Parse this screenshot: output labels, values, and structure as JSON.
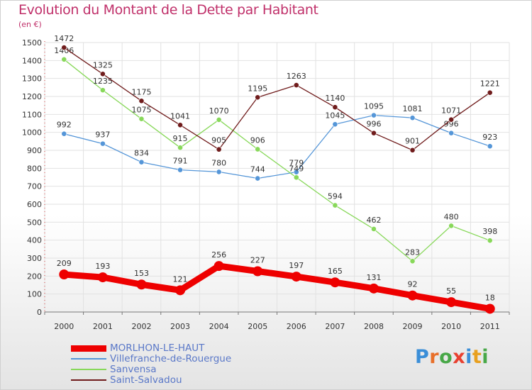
{
  "header": {
    "title": "Evolution du Montant de la Dette par Habitant",
    "unit": "(en €)"
  },
  "logo": {
    "text": "Proxiti",
    "letter_colors": [
      "#3a8ed8",
      "#e8702a",
      "#48a848",
      "#e84030",
      "#3a8ed8",
      "#e8a020",
      "#48a848"
    ]
  },
  "chart_data": {
    "type": "line",
    "title": "Evolution du Montant de la Dette par Habitant",
    "ylabel": "(en €)",
    "xlabel": "",
    "x": [
      "2000",
      "2001",
      "2002",
      "2003",
      "2004",
      "2005",
      "2006",
      "2007",
      "2008",
      "2009",
      "2010",
      "2011"
    ],
    "ylim": [
      0,
      1500
    ],
    "yticks": [
      0,
      100,
      200,
      300,
      400,
      500,
      600,
      700,
      800,
      900,
      1000,
      1100,
      1200,
      1300,
      1400,
      1500
    ],
    "grid": true,
    "legend_position": "bottom-left",
    "series": [
      {
        "name": "MORLHON-LE-HAUT",
        "color": "#ee0000",
        "emphasis": true,
        "values": [
          209,
          193,
          153,
          121,
          256,
          227,
          197,
          165,
          131,
          92,
          55,
          18
        ]
      },
      {
        "name": "Villefranche-de-Rouergue",
        "color": "#5596d8",
        "emphasis": false,
        "values": [
          992,
          937,
          834,
          791,
          780,
          744,
          779,
          1045,
          1095,
          1081,
          996,
          923
        ]
      },
      {
        "name": "Sanvensa",
        "color": "#88d85a",
        "emphasis": false,
        "values": [
          1406,
          1235,
          1075,
          915,
          1070,
          906,
          749,
          594,
          462,
          283,
          480,
          398
        ]
      },
      {
        "name": "Saint-Salvadou",
        "color": "#701c1c",
        "emphasis": false,
        "values": [
          1472,
          1325,
          1175,
          1041,
          905,
          1195,
          1263,
          1140,
          996,
          901,
          1071,
          1221
        ]
      }
    ]
  }
}
